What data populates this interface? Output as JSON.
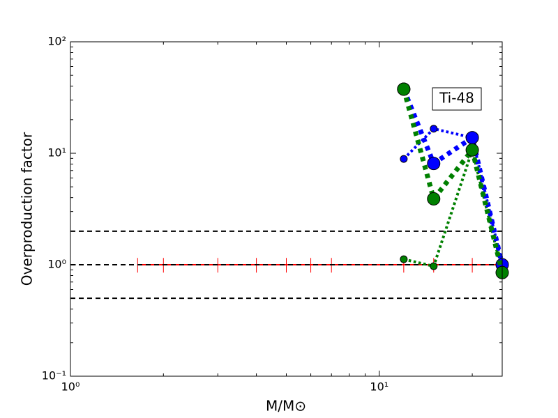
{
  "chart_data": {
    "type": "line",
    "xlabel": "M/M⊙",
    "ylabel": "Overproduction factor",
    "annotation": "Ti-48",
    "xscale": "log",
    "yscale": "log",
    "xlim": [
      1,
      25
    ],
    "ylim": [
      0.1,
      100
    ],
    "xticks": [
      {
        "value": 1,
        "label": "10⁰"
      },
      {
        "value": 10,
        "label": "10¹"
      }
    ],
    "yticks": [
      {
        "value": 0.1,
        "label": "10⁻¹"
      },
      {
        "value": 1,
        "label": "10⁰"
      },
      {
        "value": 10,
        "label": "10¹"
      },
      {
        "value": 100,
        "label": "10²"
      }
    ],
    "xminorticks": [
      2,
      3,
      4,
      5,
      6,
      7,
      8,
      9,
      20
    ],
    "yminorticks": [
      0.2,
      0.3,
      0.4,
      0.5,
      0.6,
      0.7,
      0.8,
      0.9,
      2,
      3,
      4,
      5,
      6,
      7,
      8,
      9,
      20,
      30,
      40,
      50,
      60,
      70,
      80,
      90
    ],
    "hlines": {
      "values": [
        2,
        1,
        0.5
      ],
      "color": "#000000"
    },
    "reference": {
      "color": "#ff0000",
      "x": [
        1.65,
        2,
        3,
        4,
        5,
        6,
        7,
        12,
        15,
        20,
        25
      ],
      "values": [
        1,
        1,
        1,
        1,
        1,
        1,
        1,
        1,
        1,
        1,
        1
      ],
      "errors": [
        0.15,
        0.15,
        0.15,
        0.15,
        0.15,
        0.15,
        0.15,
        0.15,
        0.15,
        0.15,
        0.15
      ]
    },
    "series": [
      {
        "color": "#008000",
        "linewidth": 4,
        "markersize": 5,
        "x": [
          12,
          15,
          20,
          25
        ],
        "values": [
          1.12,
          0.97,
          10.7,
          0.85
        ]
      },
      {
        "color": "#0000ff",
        "linewidth": 4,
        "markersize": 5,
        "x": [
          12,
          15,
          20,
          25
        ],
        "values": [
          8.9,
          16.6,
          13.8,
          1
        ]
      },
      {
        "color": "#0000ff",
        "linewidth": 7,
        "markersize": 9,
        "x": [
          12,
          15,
          20,
          25
        ],
        "values": [
          37.6,
          8.1,
          13.8,
          1
        ]
      },
      {
        "color": "#008000",
        "linewidth": 7,
        "markersize": 9,
        "x": [
          12,
          15,
          20,
          25
        ],
        "values": [
          37.6,
          3.9,
          10.7,
          0.85
        ]
      }
    ]
  }
}
